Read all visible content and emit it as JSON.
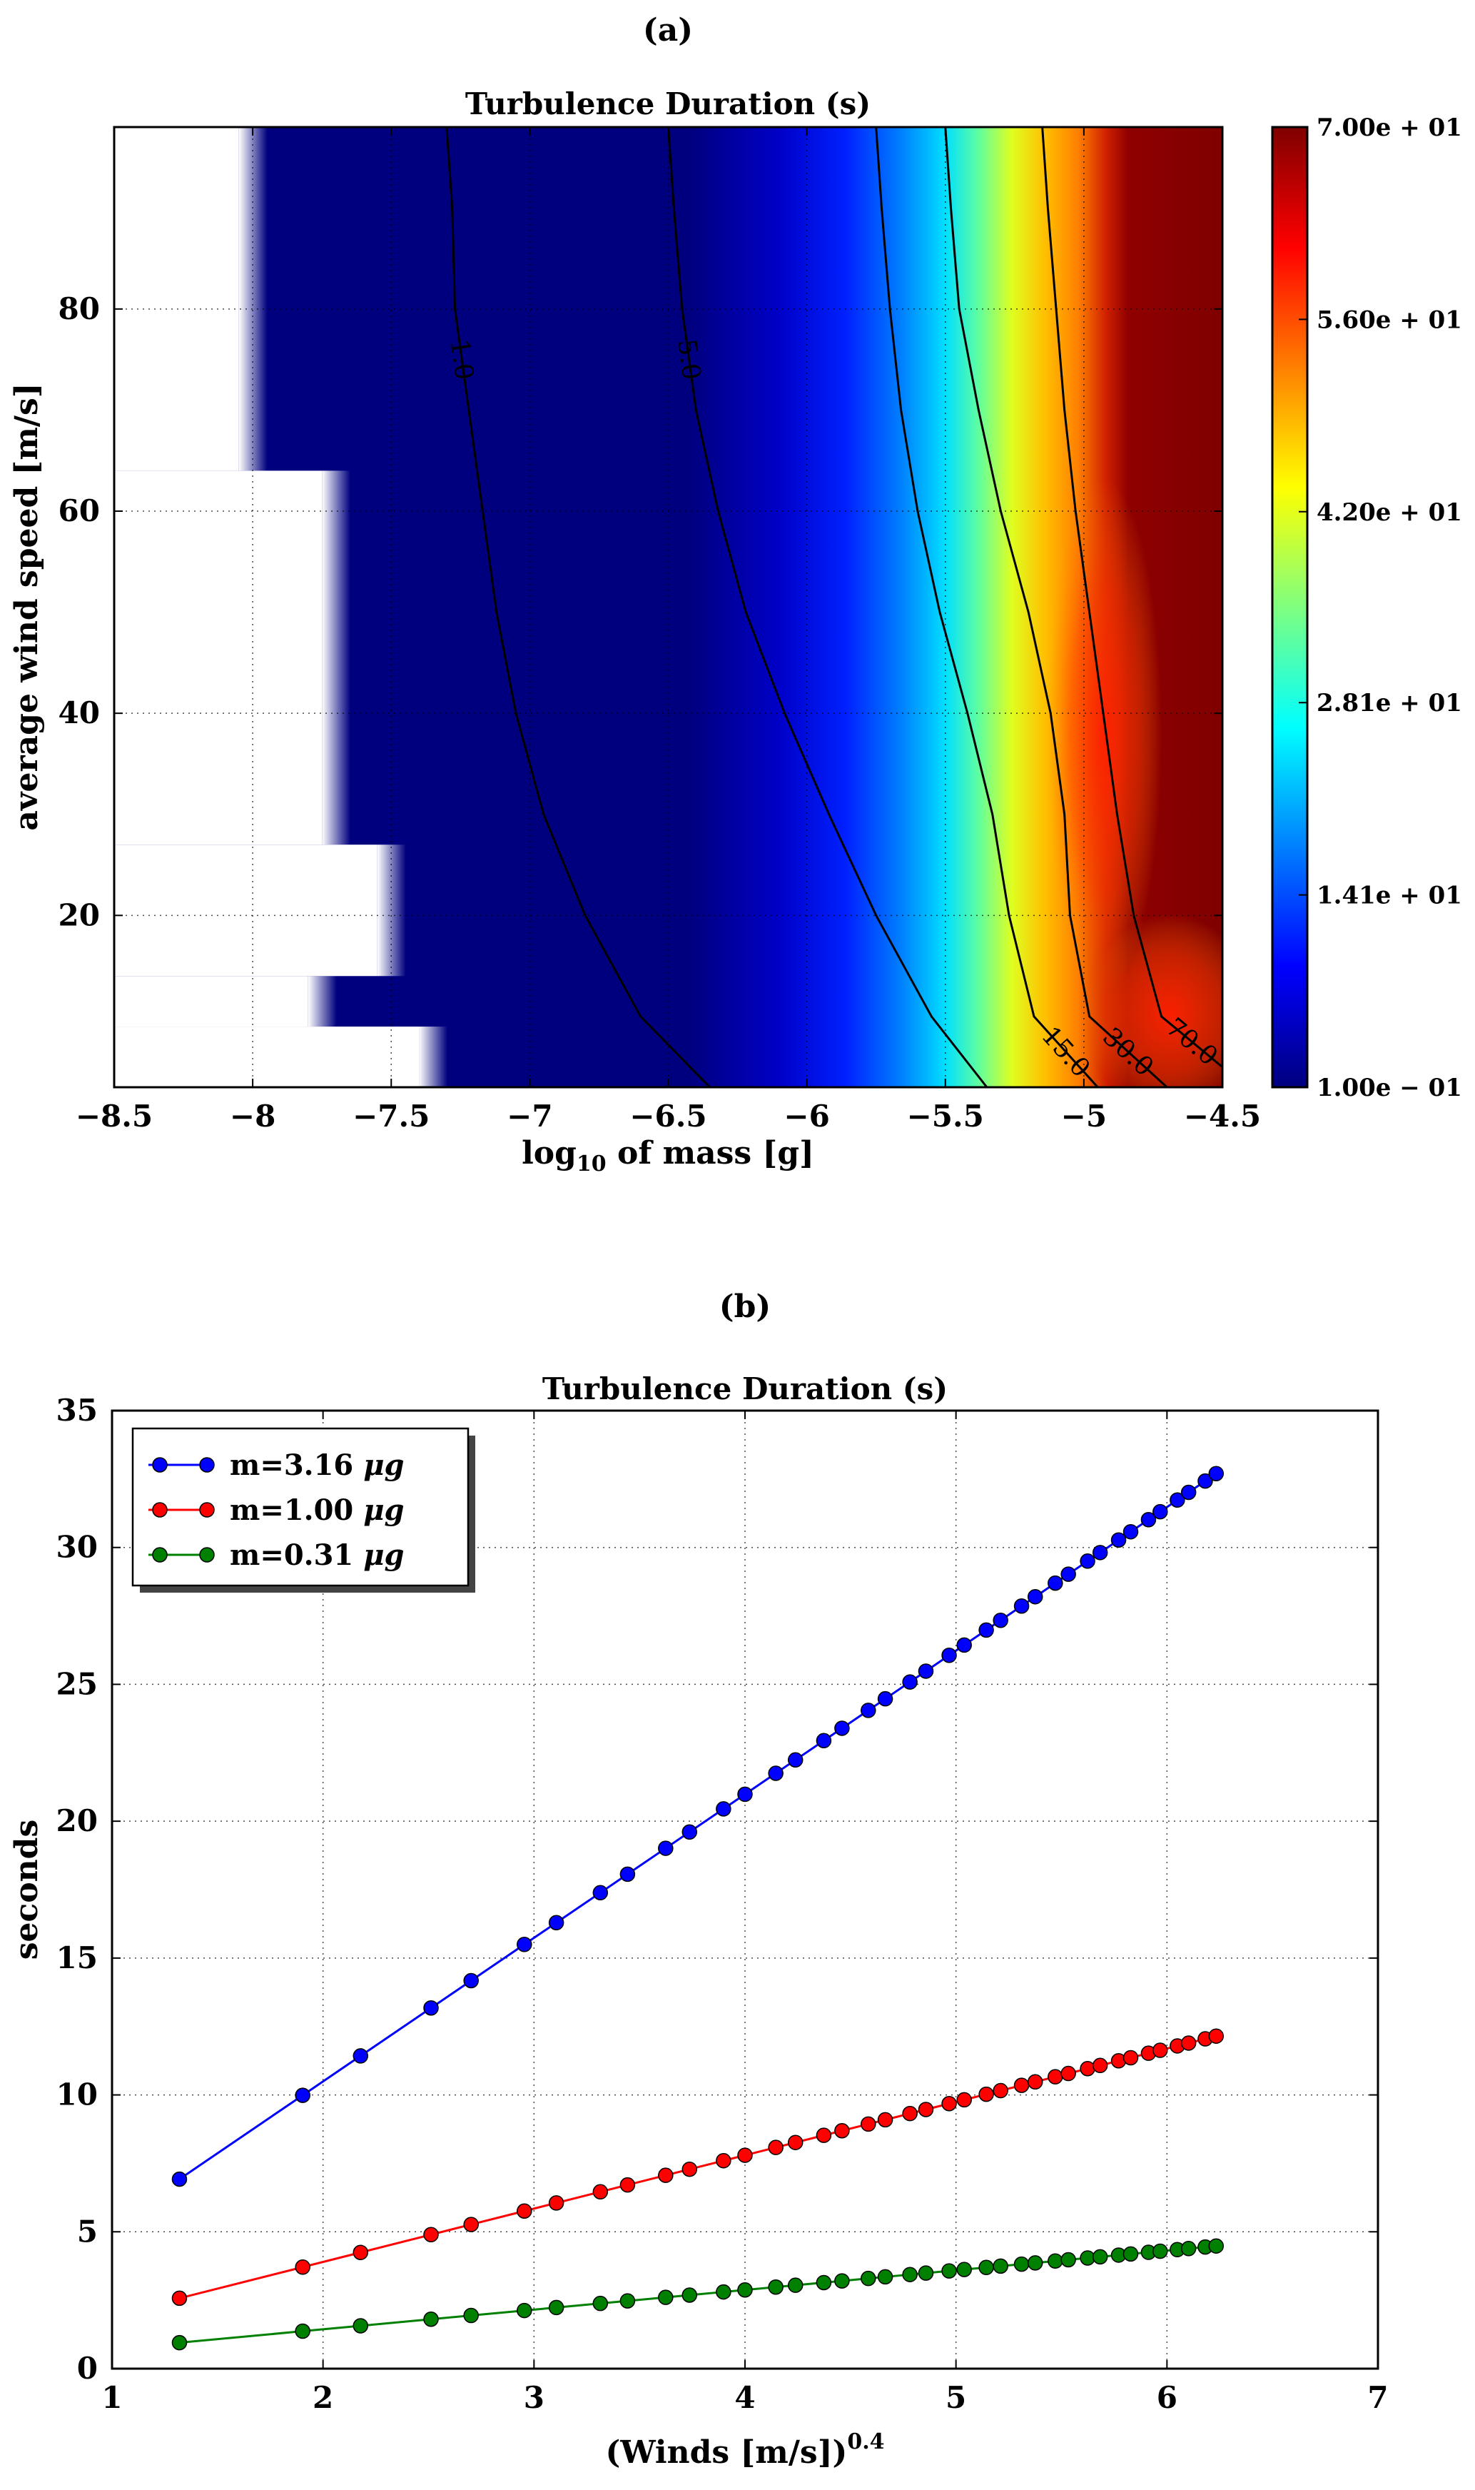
{
  "chart_data": [
    {
      "panel_label": "(a)",
      "type": "heatmap",
      "title": "Turbulence Duration (s)",
      "xlabel": "log10 of mass [g]",
      "xlabel_base": "log",
      "xlabel_sub": "10",
      "xlabel_rest": " of mass [g]",
      "ylabel": "average wind speed [m/s]",
      "xlim": [
        -8.5,
        -4.5
      ],
      "ylim": [
        3,
        98
      ],
      "x_ticks": [
        {
          "value": -8.5,
          "label": "−8.5"
        },
        {
          "value": -8.0,
          "label": "−8"
        },
        {
          "value": -7.5,
          "label": "−7.5"
        },
        {
          "value": -7.0,
          "label": "−7"
        },
        {
          "value": -6.5,
          "label": "−6.5"
        },
        {
          "value": -6.0,
          "label": "−6"
        },
        {
          "value": -5.5,
          "label": "−5.5"
        },
        {
          "value": -5.0,
          "label": "−5"
        },
        {
          "value": -4.5,
          "label": "−4.5"
        }
      ],
      "y_ticks": [
        {
          "value": 20,
          "label": "20"
        },
        {
          "value": 40,
          "label": "40"
        },
        {
          "value": 60,
          "label": "60"
        },
        {
          "value": 80,
          "label": "80"
        }
      ],
      "grid": true,
      "colorbar": {
        "min": 0.1,
        "max": 70.0,
        "tick_labels": [
          "7.00e + 01",
          "5.60e + 01",
          "4.20e + 01",
          "2.81e + 01",
          "1.41e + 01",
          "1.00e − 01"
        ],
        "tick_values": [
          70.0,
          56.0,
          42.0,
          28.1,
          14.1,
          0.1
        ],
        "colormap": [
          "#00007f",
          "#0000ff",
          "#007fff",
          "#00ffff",
          "#7fff7f",
          "#ffff00",
          "#ff7f00",
          "#ff0000",
          "#7f0000"
        ]
      },
      "no_data_boundary": [
        {
          "y_from": 64,
          "y_to": 98,
          "x_min": -8.05
        },
        {
          "y_from": 27,
          "y_to": 64,
          "x_min": -7.75
        },
        {
          "y_from": 14,
          "y_to": 27,
          "x_min": -7.55
        },
        {
          "y_from": 9,
          "y_to": 14,
          "x_min": -7.8
        },
        {
          "y_from": 3,
          "y_to": 9,
          "x_min": -7.4
        }
      ],
      "contours": [
        {
          "level": "1.0",
          "points": [
            [
              -7.3,
              98
            ],
            [
              -7.28,
              90
            ],
            [
              -7.27,
              80
            ],
            [
              -7.22,
              70
            ],
            [
              -7.17,
              60
            ],
            [
              -7.12,
              50
            ],
            [
              -7.05,
              40
            ],
            [
              -6.95,
              30
            ],
            [
              -6.8,
              20
            ],
            [
              -6.6,
              10
            ],
            [
              -6.35,
              3
            ]
          ]
        },
        {
          "level": "5.0",
          "points": [
            [
              -6.5,
              98
            ],
            [
              -6.48,
              90
            ],
            [
              -6.45,
              80
            ],
            [
              -6.4,
              70
            ],
            [
              -6.32,
              60
            ],
            [
              -6.22,
              50
            ],
            [
              -6.08,
              40
            ],
            [
              -5.92,
              30
            ],
            [
              -5.75,
              20
            ],
            [
              -5.55,
              10
            ],
            [
              -5.35,
              3
            ]
          ]
        },
        {
          "level": "15.0",
          "points": [
            [
              -5.75,
              98
            ],
            [
              -5.73,
              90
            ],
            [
              -5.7,
              80
            ],
            [
              -5.66,
              70
            ],
            [
              -5.6,
              60
            ],
            [
              -5.52,
              50
            ],
            [
              -5.42,
              40
            ],
            [
              -5.33,
              30
            ],
            [
              -5.27,
              20
            ],
            [
              -5.18,
              10
            ],
            [
              -4.95,
              3
            ]
          ]
        },
        {
          "level": "30.0",
          "points": [
            [
              -5.5,
              98
            ],
            [
              -5.48,
              90
            ],
            [
              -5.45,
              80
            ],
            [
              -5.38,
              70
            ],
            [
              -5.3,
              60
            ],
            [
              -5.2,
              50
            ],
            [
              -5.12,
              40
            ],
            [
              -5.07,
              30
            ],
            [
              -5.05,
              20
            ],
            [
              -4.98,
              10
            ],
            [
              -4.7,
              3
            ]
          ]
        },
        {
          "level": "70.0",
          "points": [
            [
              -5.15,
              98
            ],
            [
              -5.13,
              90
            ],
            [
              -5.1,
              80
            ],
            [
              -5.07,
              70
            ],
            [
              -5.03,
              60
            ],
            [
              -4.98,
              50
            ],
            [
              -4.93,
              40
            ],
            [
              -4.88,
              30
            ],
            [
              -4.82,
              20
            ],
            [
              -4.72,
              10
            ],
            [
              -4.5,
              5
            ]
          ]
        }
      ]
    },
    {
      "panel_label": "(b)",
      "type": "line",
      "title": "Turbulence Duration (s)",
      "xlabel": "(Winds [m/s])0.4",
      "xlabel_main": "(Winds [m/s])",
      "xlabel_sup": "0.4",
      "ylabel": "seconds",
      "xlim": [
        1,
        7
      ],
      "ylim": [
        0,
        35
      ],
      "x_ticks": [
        1,
        2,
        3,
        4,
        5,
        6,
        7
      ],
      "y_ticks": [
        0,
        5,
        10,
        15,
        20,
        25,
        30,
        35
      ],
      "grid": true,
      "legend_position": "top-left",
      "series": [
        {
          "name": "m=3.16 μg",
          "name_main": "m=3.16 ",
          "name_unit": "μg",
          "color": "#0000ff",
          "k": 5.246
        },
        {
          "name": "m=1.00 μg",
          "name_main": "m=1.00 ",
          "name_unit": "μg",
          "color": "#ff0000",
          "k": 1.949
        },
        {
          "name": "m=0.31 μg",
          "name_main": "m=0.31 ",
          "name_unit": "μg",
          "color": "#008000",
          "k": 0.7188
        }
      ],
      "wind_speeds_ms": [
        2,
        5,
        7,
        10,
        12,
        15,
        17,
        20,
        22,
        25,
        27,
        30,
        32,
        35,
        37,
        40,
        42,
        45,
        47,
        50,
        52,
        55,
        57,
        60,
        62,
        65,
        67,
        70,
        72,
        75,
        77,
        80,
        82,
        85,
        87,
        90,
        92,
        95,
        97
      ]
    }
  ]
}
